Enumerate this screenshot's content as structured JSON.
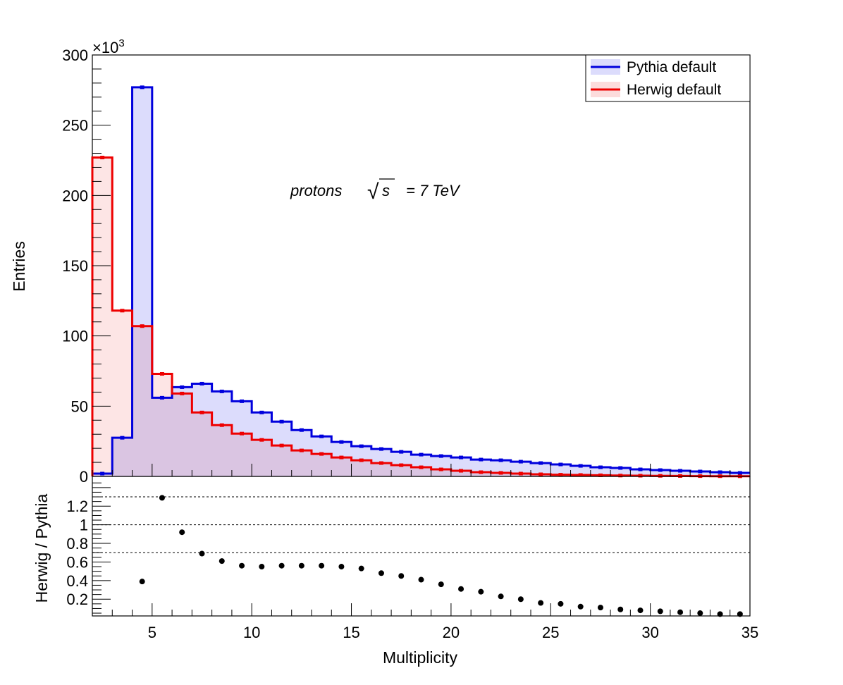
{
  "chart_data": [
    {
      "type": "histogram",
      "panel": "top",
      "xlabel": "",
      "ylabel": "Entries",
      "y_multiplier": "×10",
      "y_multiplier_exp": "3",
      "xlim": [
        2,
        35
      ],
      "ylim": [
        0,
        300
      ],
      "y_ticks": [
        0,
        50,
        100,
        150,
        200,
        250,
        300
      ],
      "bin_edges": [
        2,
        3,
        4,
        5,
        6,
        7,
        8,
        9,
        10,
        11,
        12,
        13,
        14,
        15,
        16,
        17,
        18,
        19,
        20,
        21,
        22,
        23,
        24,
        25,
        26,
        27,
        28,
        29,
        30,
        31,
        32,
        33,
        34,
        35
      ],
      "series": [
        {
          "name": "Pythia default",
          "color": "#0000dd",
          "fill": "#dcdcfc",
          "values": [
            2,
            27.5,
            277,
            56,
            63.5,
            66,
            60.5,
            53.5,
            45.5,
            39,
            33,
            28.5,
            24.5,
            21.5,
            19.5,
            17.5,
            15.5,
            14.5,
            13.5,
            12,
            11.5,
            10.5,
            9.5,
            8.5,
            7.5,
            6.5,
            6,
            5,
            4.5,
            4,
            3.5,
            3,
            2.5
          ]
        },
        {
          "name": "Herwig default",
          "color": "#ee0000",
          "fill": "#fcdcdc",
          "values": [
            227,
            118,
            107,
            73,
            59,
            45.5,
            36.5,
            30.5,
            26,
            22,
            18.5,
            16,
            13.5,
            11.5,
            9.5,
            8,
            6.5,
            5,
            4,
            3,
            2.5,
            2,
            1.5,
            1.2,
            1,
            0.8,
            0.6,
            0.5,
            0.4,
            0.3,
            0.2,
            0.15,
            0.1
          ]
        }
      ],
      "legend": {
        "position": "top-right"
      },
      "annotation": {
        "word": "protons",
        "sqrt_symbol": "√",
        "sqrt_arg": "s",
        "equals_value": "= 7 TeV"
      }
    },
    {
      "type": "scatter",
      "panel": "bottom",
      "xlabel": "Multiplicity",
      "ylabel": "Herwig / Pythia",
      "xlim": [
        2,
        35
      ],
      "ylim": [
        0.02,
        1.52
      ],
      "x_ticks": [
        5,
        10,
        15,
        20,
        25,
        30,
        35
      ],
      "y_ticks": [
        0.2,
        0.4,
        0.6,
        0.8,
        1,
        1.2
      ],
      "reference_lines": [
        0.7,
        1.0,
        1.3
      ],
      "x": [
        4.5,
        5.5,
        6.5,
        7.5,
        8.5,
        9.5,
        10.5,
        11.5,
        12.5,
        13.5,
        14.5,
        15.5,
        16.5,
        17.5,
        18.5,
        19.5,
        20.5,
        21.5,
        22.5,
        23.5,
        24.5,
        25.5,
        26.5,
        27.5,
        28.5,
        29.5,
        30.5,
        31.5,
        32.5,
        33.5,
        34.5
      ],
      "values": [
        0.39,
        1.29,
        0.92,
        0.69,
        0.61,
        0.56,
        0.55,
        0.56,
        0.56,
        0.56,
        0.55,
        0.53,
        0.48,
        0.45,
        0.41,
        0.36,
        0.31,
        0.28,
        0.23,
        0.2,
        0.16,
        0.15,
        0.12,
        0.11,
        0.09,
        0.08,
        0.07,
        0.06,
        0.05,
        0.04,
        0.04
      ]
    }
  ]
}
